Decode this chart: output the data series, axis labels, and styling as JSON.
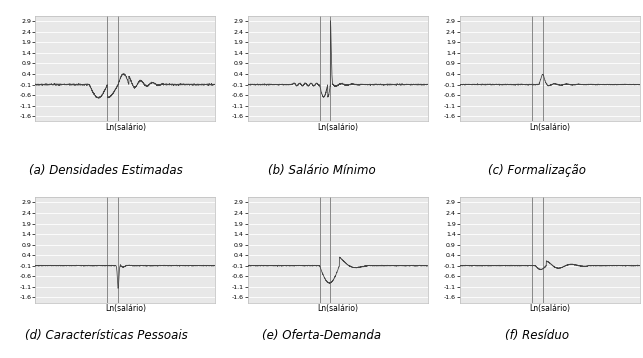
{
  "subplots": [
    {
      "label": "(a) Densidades Estimadas",
      "signal_type": "a"
    },
    {
      "label": "(b) Salário Mínimo",
      "signal_type": "b"
    },
    {
      "label": "(c) Formalização",
      "signal_type": "c"
    },
    {
      "label": "(d) Características Pessoais",
      "signal_type": "d"
    },
    {
      "label": "(e) Oferta-Demanda",
      "signal_type": "e"
    },
    {
      "label": "(f) Resíduo",
      "signal_type": "f"
    }
  ],
  "yticks": [
    2.9,
    2.4,
    1.9,
    1.4,
    0.9,
    0.4,
    -0.1,
    -0.6,
    -1.1,
    -1.6
  ],
  "ylim": [
    -1.85,
    3.15
  ],
  "xlabel": "Ln(salário)",
  "vline_color": "#888888",
  "signal_color": "#444444",
  "bg_color": "#e8e8e8",
  "grid_color": "#ffffff",
  "border_color": "#bbbbbb",
  "xlabel_fontsize": 5.5,
  "caption_fontsize": 8.5,
  "ytick_fontsize": 4.5
}
